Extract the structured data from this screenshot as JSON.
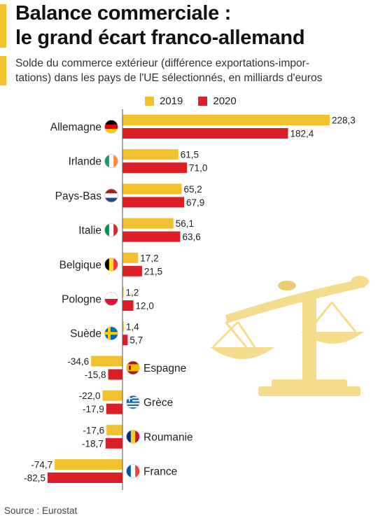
{
  "header": {
    "title_line1": "Balance commerciale :",
    "title_line2": "le grand écart franco-allemand",
    "subtitle_line1": "Solde du commerce extérieur (différence exportations-impor-",
    "subtitle_line2": "tations) dans les pays de l'UE sélectionnés, en milliards d'euros"
  },
  "footer": {
    "source": "Source : Eurostat"
  },
  "chart_data": {
    "type": "bar",
    "orientation": "horizontal",
    "categories": [
      "Allemagne",
      "Irlande",
      "Pays-Bas",
      "Italie",
      "Belgique",
      "Pologne",
      "Suède",
      "Espagne",
      "Grèce",
      "Roumanie",
      "France"
    ],
    "series": [
      {
        "name": "2019",
        "color": "#f2c12e",
        "values": [
          228.3,
          61.5,
          65.2,
          56.1,
          17.2,
          1.2,
          1.4,
          -34.6,
          -22.0,
          -17.6,
          -74.7
        ],
        "labels": [
          "228,3",
          "61,5",
          "65,2",
          "56,1",
          "17,2",
          "1,2",
          "1,4",
          "-34,6",
          "-22,0",
          "-17,6",
          "-74,7"
        ]
      },
      {
        "name": "2020",
        "color": "#dc1f26",
        "values": [
          182.4,
          71.0,
          67.9,
          63.6,
          21.5,
          12.0,
          5.7,
          -15.8,
          -17.9,
          -18.7,
          -82.5
        ],
        "labels": [
          "182,4",
          "71,0",
          "67,9",
          "63,6",
          "21,5",
          "12,0",
          "5,7",
          "-15,8",
          "-17,9",
          "-18,7",
          "-82,5"
        ]
      }
    ],
    "flags": [
      "flag-germany-icon",
      "flag-ireland-icon",
      "flag-netherlands-icon",
      "flag-italy-icon",
      "flag-belgium-icon",
      "flag-poland-icon",
      "flag-sweden-icon",
      "flag-spain-icon",
      "flag-greece-icon",
      "flag-romania-icon",
      "flag-france-icon"
    ],
    "decoration": "balance-scale-icon",
    "legend_position": "top",
    "grid": false
  }
}
